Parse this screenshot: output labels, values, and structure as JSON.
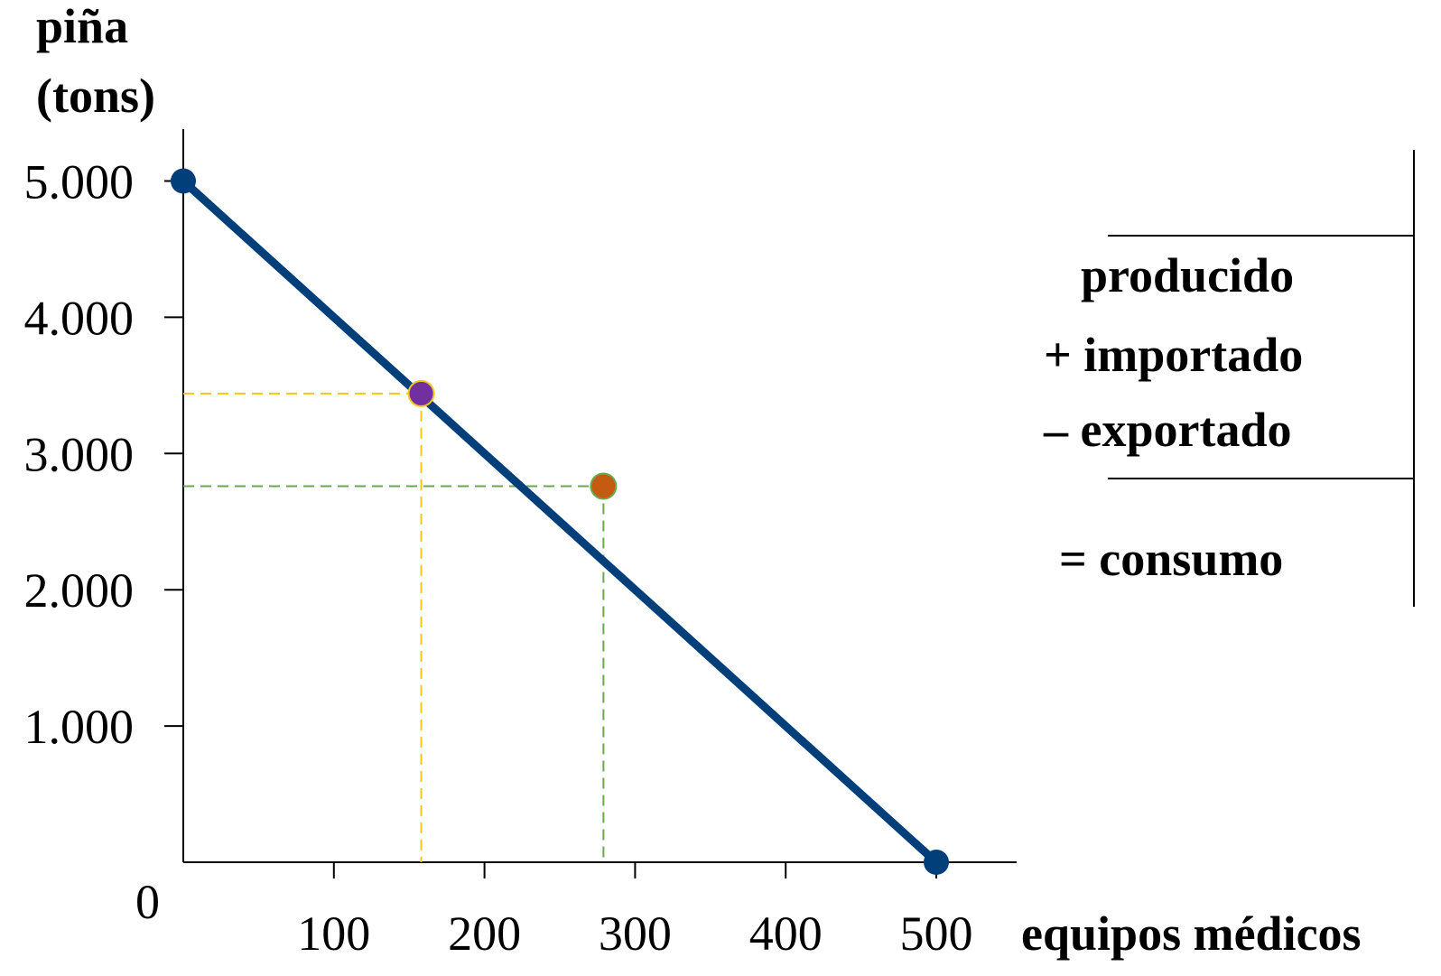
{
  "chart_data": {
    "type": "line",
    "ylabel_lines": [
      "piña",
      "(tons)"
    ],
    "xlabel": "equipos médicos",
    "origin_label": "0",
    "xlim": [
      0,
      550
    ],
    "ylim": [
      0,
      5000
    ],
    "x_ticks": [
      100,
      200,
      300,
      400,
      500
    ],
    "x_tick_labels": [
      "100",
      "200",
      "300",
      "400",
      "500"
    ],
    "y_ticks": [
      1000,
      2000,
      3000,
      4000,
      5000
    ],
    "y_tick_labels": [
      "1.000",
      "2.000",
      "3.000",
      "4.000",
      "5.000"
    ],
    "grid": false,
    "line": {
      "points": [
        [
          0,
          5000
        ],
        [
          500,
          0
        ]
      ],
      "color": "#003f7a"
    },
    "endpoints": [
      {
        "x": 0,
        "y": 5000,
        "color": "#003f7a"
      },
      {
        "x": 500,
        "y": 0,
        "color": "#003f7a"
      }
    ],
    "markers": [
      {
        "name": "producido",
        "x": 158,
        "y": 3440,
        "color": "#7030a0",
        "guide_color": "#f5c518"
      },
      {
        "name": "consumo",
        "x": 279,
        "y": 2760,
        "color": "#c55a11",
        "guide_color": "#6aa84f"
      }
    ],
    "legend": {
      "placement": "right",
      "items": [
        {
          "text": "producido",
          "color": "#4b1f6f"
        },
        {
          "text": "+ importado",
          "color": "#c55a11"
        },
        {
          "text": "– exportado",
          "color": "#548235"
        },
        {
          "text": "= consumo",
          "color": "#000000"
        }
      ]
    }
  }
}
